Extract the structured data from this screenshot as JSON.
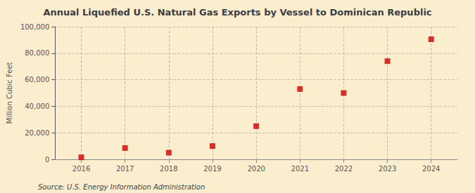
{
  "chart_data": {
    "type": "scatter",
    "title": "Annual Liquefied U.S. Natural Gas Exports by Vessel to Dominican Republic",
    "ylabel": "Million Cubic Feet",
    "annotation": "Source: U.S. Energy Information Administration",
    "x": [
      2016,
      2017,
      2018,
      2019,
      2020,
      2021,
      2022,
      2023,
      2024
    ],
    "values": [
      1500,
      8500,
      5000,
      10000,
      25000,
      53000,
      50000,
      74000,
      90500
    ],
    "color": "#cc0000",
    "marker": "square",
    "xlim": [
      2015.4,
      2024.6
    ],
    "xticks": [
      2016,
      2017,
      2018,
      2019,
      2020,
      2021,
      2022,
      2023,
      2024
    ],
    "ylim": [
      0,
      100000
    ],
    "yticks": [
      0,
      {
        "value": 20000,
        "label": "20,000"
      },
      {
        "value": 40000,
        "label": "40,000"
      },
      {
        "value": 60000,
        "label": "60,000"
      },
      {
        "value": 80000,
        "label": "80,000"
      },
      {
        "value": 100000,
        "label": "100,000"
      }
    ],
    "grid": true
  }
}
